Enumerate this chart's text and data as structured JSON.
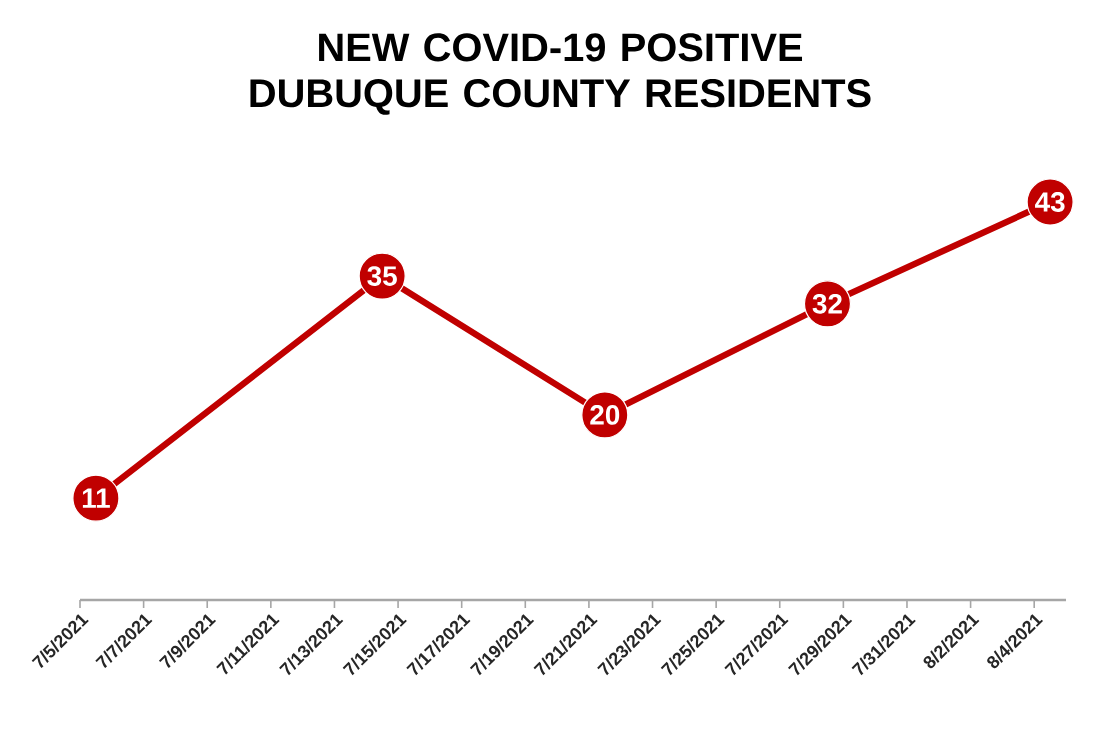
{
  "chart_data": {
    "type": "line",
    "title": "NEW COVID-19 POSITIVE DUBUQUE COUNTY RESIDENTS",
    "x": [
      "2021-07-05T12:00",
      "2021-07-14T12:00",
      "2021-07-21T12:00",
      "2021-07-28T12:00",
      "2021-08-04T12:00"
    ],
    "values": [
      11,
      35,
      20,
      32,
      43
    ],
    "color": "#c00000",
    "data_labels": true,
    "marker": "circle",
    "line_style": "solid",
    "tick_labels": "x",
    "xlim": [
      "2021-07-05",
      "2021-08-05"
    ],
    "xticks": [
      {
        "value": "2021-07-05",
        "label": "7/5/2021"
      },
      {
        "value": "2021-07-07",
        "label": "7/7/2021"
      },
      {
        "value": "2021-07-09",
        "label": "7/9/2021"
      },
      {
        "value": "2021-07-11",
        "label": "7/11/2021"
      },
      {
        "value": "2021-07-13",
        "label": "7/13/2021"
      },
      {
        "value": "2021-07-15",
        "label": "7/15/2021"
      },
      {
        "value": "2021-07-17",
        "label": "7/17/2021"
      },
      {
        "value": "2021-07-19",
        "label": "7/19/2021"
      },
      {
        "value": "2021-07-21",
        "label": "7/21/2021"
      },
      {
        "value": "2021-07-23",
        "label": "7/23/2021"
      },
      {
        "value": "2021-07-25",
        "label": "7/25/2021"
      },
      {
        "value": "2021-07-27",
        "label": "7/27/2021"
      },
      {
        "value": "2021-07-29",
        "label": "7/29/2021"
      },
      {
        "value": "2021-07-31",
        "label": "7/31/2021"
      },
      {
        "value": "2021-08-02",
        "label": "8/2/2021"
      },
      {
        "value": "2021-08-04",
        "label": "8/4/2021"
      }
    ]
  }
}
